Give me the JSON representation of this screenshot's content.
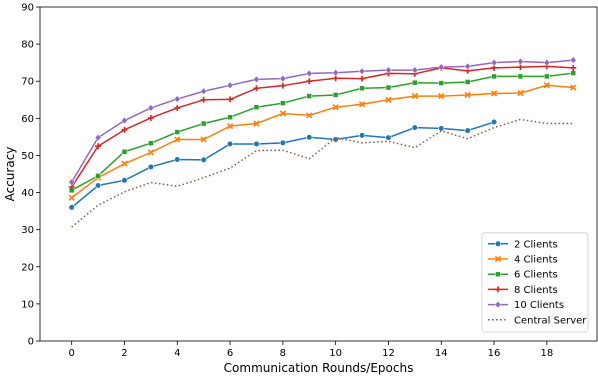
{
  "chart_data": {
    "type": "line",
    "xlabel": "Communication Rounds/Epochs",
    "ylabel": "Accuracy",
    "xlim": [
      -1.2,
      19.9
    ],
    "ylim": [
      0,
      90
    ],
    "xticks": [
      "0",
      "2",
      "4",
      "6",
      "8",
      "10",
      "12",
      "14",
      "16",
      "18"
    ],
    "xtick_values": [
      0,
      2,
      4,
      6,
      8,
      10,
      12,
      14,
      16,
      18
    ],
    "yticks": [
      "0",
      "10",
      "20",
      "30",
      "40",
      "50",
      "60",
      "70",
      "80",
      "90"
    ],
    "ytick_values": [
      0,
      10,
      20,
      30,
      40,
      50,
      60,
      70,
      80,
      90
    ],
    "grid": false,
    "legend_position": "lower-right",
    "series": [
      {
        "name": "2 Clients",
        "color": "#1f77b4",
        "marker": "circle",
        "linestyle": "solid",
        "x": [
          0,
          1,
          2,
          3,
          4,
          5,
          6,
          7,
          8,
          9,
          10,
          11,
          12,
          13,
          14,
          15,
          16
        ],
        "y": [
          36.0,
          41.9,
          43.3,
          46.9,
          48.9,
          48.8,
          53.1,
          53.1,
          53.4,
          54.9,
          54.3,
          55.4,
          54.8,
          57.5,
          57.3,
          56.7,
          59.0
        ]
      },
      {
        "name": "4 Clients",
        "color": "#ff7f0e",
        "marker": "x",
        "linestyle": "solid",
        "x": [
          0,
          1,
          2,
          3,
          4,
          5,
          6,
          7,
          8,
          9,
          10,
          11,
          12,
          13,
          14,
          15,
          16,
          17,
          18,
          19
        ],
        "y": [
          38.6,
          44.0,
          47.8,
          50.8,
          54.3,
          54.3,
          57.9,
          58.6,
          61.3,
          60.8,
          63.0,
          63.8,
          65.0,
          66.0,
          66.0,
          66.3,
          66.7,
          66.8,
          68.9,
          68.3
        ]
      },
      {
        "name": "6 Clients",
        "color": "#2ca02c",
        "marker": "square",
        "linestyle": "solid",
        "x": [
          0,
          1,
          2,
          3,
          4,
          5,
          6,
          7,
          8,
          9,
          10,
          11,
          12,
          13,
          14,
          15,
          16,
          17,
          18,
          19
        ],
        "y": [
          40.6,
          44.5,
          51.0,
          53.3,
          56.3,
          58.6,
          60.3,
          63.0,
          64.1,
          66.0,
          66.3,
          68.1,
          68.3,
          69.6,
          69.5,
          69.8,
          71.3,
          71.3,
          71.3,
          72.2
        ]
      },
      {
        "name": "8 Clients",
        "color": "#d62728",
        "marker": "plus",
        "linestyle": "solid",
        "x": [
          0,
          1,
          2,
          3,
          4,
          5,
          6,
          7,
          8,
          9,
          10,
          11,
          12,
          13,
          14,
          15,
          16,
          17,
          18,
          19
        ],
        "y": [
          41.5,
          52.5,
          56.9,
          60.1,
          62.8,
          65.0,
          65.1,
          68.1,
          68.8,
          70.0,
          70.8,
          70.7,
          72.1,
          72.0,
          73.6,
          72.8,
          73.6,
          73.8,
          74.0,
          73.6
        ]
      },
      {
        "name": "10 Clients",
        "color": "#9467bd",
        "marker": "diamond",
        "linestyle": "solid",
        "x": [
          0,
          1,
          2,
          3,
          4,
          5,
          6,
          7,
          8,
          9,
          10,
          11,
          12,
          13,
          14,
          15,
          16,
          17,
          18,
          19
        ],
        "y": [
          42.8,
          54.8,
          59.4,
          62.8,
          65.2,
          67.3,
          68.9,
          70.5,
          70.7,
          72.1,
          72.3,
          72.7,
          73.0,
          73.0,
          73.8,
          74.0,
          75.0,
          75.3,
          75.0,
          75.7
        ]
      },
      {
        "name": "Central Server",
        "color": "#8c564b",
        "marker": "none",
        "linestyle": "dotted",
        "x": [
          0,
          1,
          2,
          3,
          4,
          5,
          6,
          7,
          8,
          9,
          10,
          11,
          12,
          13,
          14,
          15,
          16,
          17,
          18,
          19
        ],
        "y": [
          30.7,
          36.6,
          40.2,
          42.7,
          41.7,
          44.0,
          46.6,
          51.3,
          51.4,
          49.1,
          54.8,
          53.4,
          53.8,
          52.1,
          56.6,
          54.5,
          57.5,
          59.7,
          58.6,
          58.6
        ]
      }
    ]
  }
}
